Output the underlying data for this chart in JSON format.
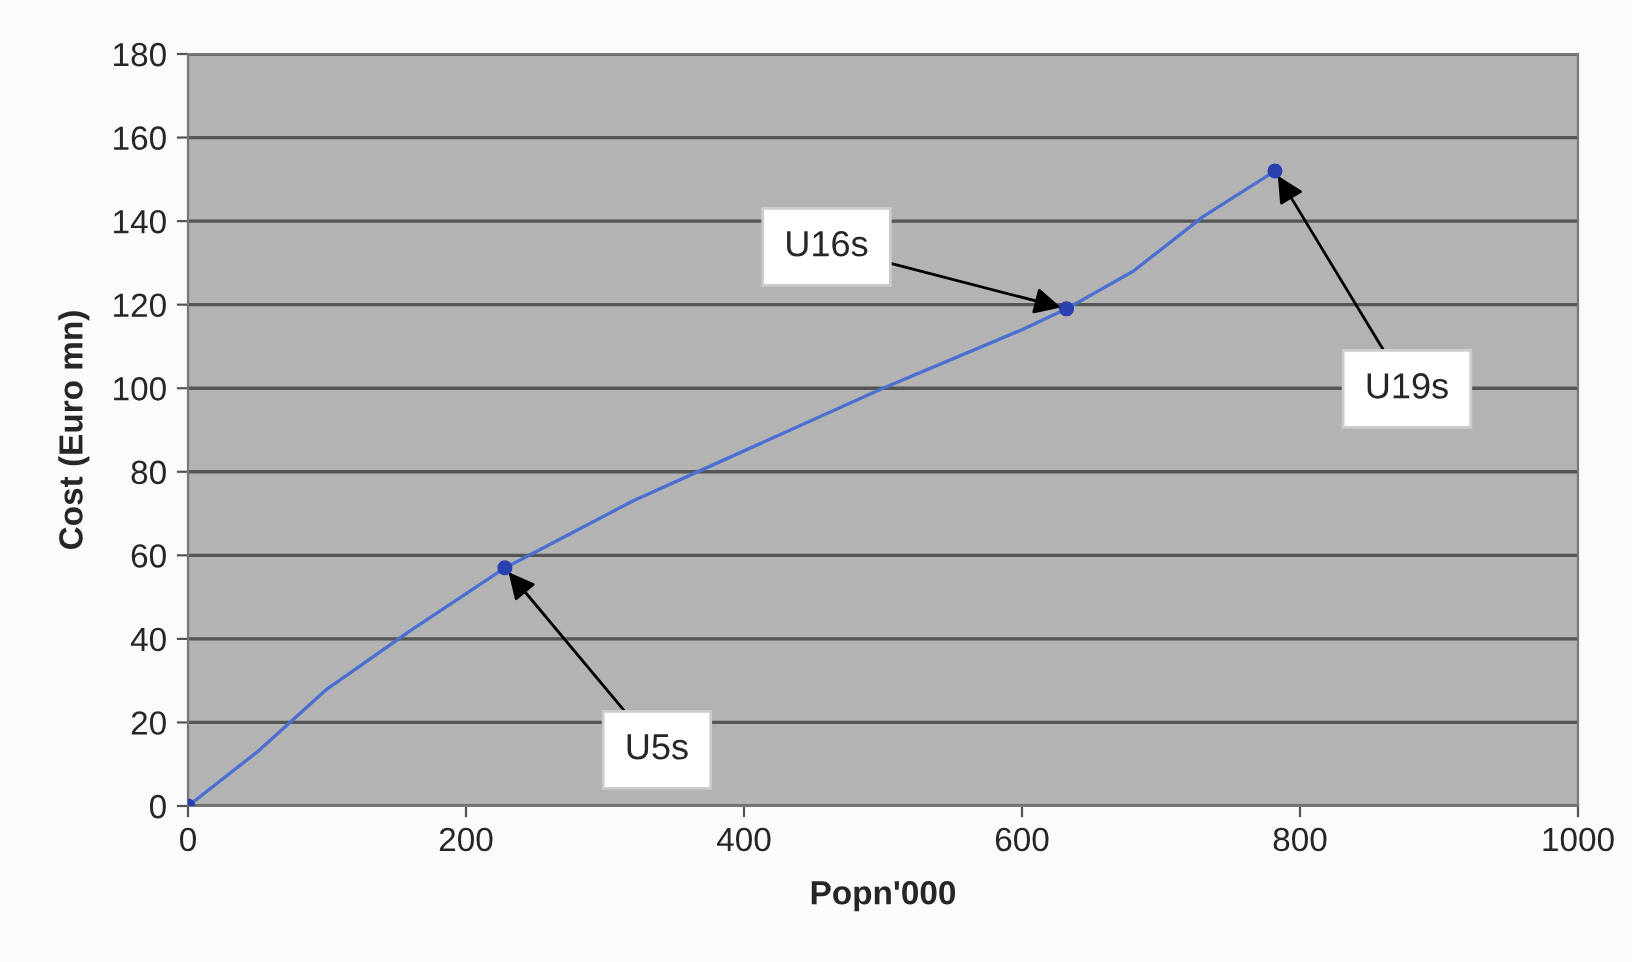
{
  "chart_data": {
    "type": "line",
    "xlabel": "Popn'000",
    "ylabel": "Cost (Euro mn)",
    "series": [
      {
        "color": "#4a6fd0",
        "marker": "none",
        "x": [
          0,
          50,
          100,
          160,
          228,
          320,
          400,
          500,
          600,
          632,
          680,
          730,
          782
        ],
        "values": [
          0,
          13,
          28,
          42,
          57,
          73,
          85,
          100,
          114,
          119,
          128,
          141,
          152
        ]
      },
      {
        "type": "scatter",
        "color": "#2a3fb0",
        "marker": "circle",
        "x": [
          0,
          228,
          632,
          782
        ],
        "values": [
          0,
          57,
          119,
          152
        ]
      }
    ],
    "annotations": [
      {
        "text": "U5s",
        "x": 228,
        "y": 57
      },
      {
        "text": "U16s",
        "x": 632,
        "y": 119
      },
      {
        "text": "U19s",
        "x": 782,
        "y": 152
      }
    ],
    "xlim": [
      0,
      1000
    ],
    "xticks": [
      0,
      200,
      400,
      600,
      800,
      1000
    ],
    "ylim": [
      0,
      180
    ],
    "yticks": [
      0,
      20,
      40,
      60,
      80,
      100,
      120,
      140,
      160,
      180
    ],
    "grid": "y",
    "legend": false
  }
}
